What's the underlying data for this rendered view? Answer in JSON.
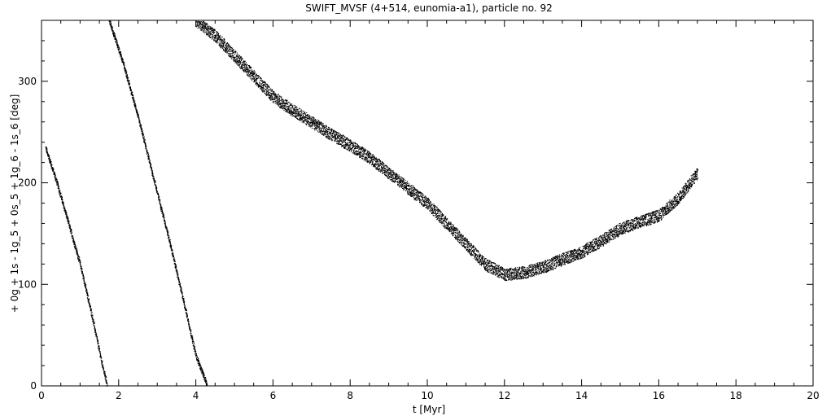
{
  "chart_data": {
    "type": "scatter",
    "title": "SWIFT_MVSF (4+514, eunomia-a1), particle no. 92",
    "xlabel": "t [Myr]",
    "ylabel": "+ 0g + 1s - 1g_5 + 0s_5 + 1g_6 - 1s_6 [deg]",
    "xlim": [
      0,
      20
    ],
    "ylim": [
      0,
      360
    ],
    "x_ticks": [
      0,
      2,
      4,
      6,
      8,
      10,
      12,
      14,
      16,
      18,
      20
    ],
    "x_tick_labels": [
      "0",
      "2",
      "4",
      "6",
      "8",
      "10",
      "12",
      "14",
      "16",
      "18",
      "20"
    ],
    "y_ticks": [
      0,
      100,
      200,
      300
    ],
    "y_tick_labels": [
      "0",
      "100",
      "200",
      "300"
    ],
    "grid": false,
    "legend": "none",
    "marker_color": "#000000",
    "series": [
      {
        "x": [
          0.1,
          0.4,
          0.7,
          1.0,
          1.3,
          1.55,
          1.7
        ],
        "y": [
          235,
          200,
          160,
          120,
          70,
          25,
          0
        ]
      },
      {
        "x": [
          1.75,
          2.1,
          2.5,
          2.9,
          3.3,
          3.7,
          4.0,
          4.3
        ],
        "y": [
          360,
          320,
          265,
          205,
          145,
          80,
          30,
          0
        ]
      },
      {
        "x": [
          4.0,
          4.5,
          5.0,
          5.5,
          6.0,
          6.5,
          7.0,
          7.5,
          8.0,
          8.5,
          9.0,
          9.5,
          10.0,
          10.5,
          11.0,
          11.25,
          11.5,
          12.0,
          12.5,
          13.0,
          13.5,
          14.0,
          14.5,
          15.0,
          15.5,
          16.0,
          16.5,
          17.0
        ],
        "y": [
          360,
          345,
          325,
          305,
          285,
          272,
          260,
          248,
          237,
          225,
          210,
          195,
          180,
          160,
          140,
          130,
          120,
          110,
          112,
          117,
          125,
          132,
          143,
          155,
          162,
          168,
          185,
          210
        ]
      }
    ]
  }
}
